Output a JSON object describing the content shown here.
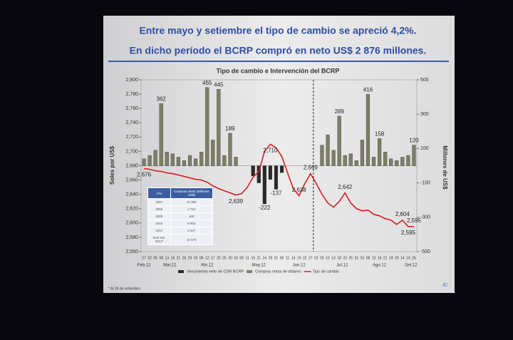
{
  "header": {
    "line1": "Entre  mayo y setiembre el tipo de cambio se apreció 4,2%.",
    "line2": "En dicho período el BCRP compró en neto US$ 2 876 millones."
  },
  "chart_data": {
    "type": "bar_line",
    "title": "Tipo de cambio e Intervención del BCRP",
    "ylabel": "Soles por US$",
    "y2label": "Millones de US$",
    "categories": [
      "27",
      "02",
      "05",
      "08",
      "13",
      "16",
      "21",
      "26",
      "29",
      "03",
      "09",
      "12",
      "17",
      "20",
      "25",
      "30",
      "03",
      "08",
      "11",
      "16",
      "21",
      "24",
      "29",
      "01",
      "06",
      "11",
      "14",
      "19",
      "22",
      "27",
      "02",
      "05",
      "10",
      "13",
      "18",
      "23",
      "26",
      "31",
      "03",
      "08",
      "13",
      "16",
      "21",
      "24",
      "29",
      "14",
      "19",
      "26"
    ],
    "months": [
      "Feb.12",
      "Mar.12",
      "Abr.12",
      "May.12",
      "Jun.12",
      "Jul.12",
      "Ago.12",
      "Set.12"
    ],
    "ylim": [
      2560,
      2800
    ],
    "yticks": [
      {
        "value": 2560,
        "label": "2,560"
      },
      {
        "value": 2580,
        "label": "2,580"
      },
      {
        "value": 2600,
        "label": "2,600"
      },
      {
        "value": 2620,
        "label": "2,620"
      },
      {
        "value": 2640,
        "label": "2,640"
      },
      {
        "value": 2660,
        "label": "2,660"
      },
      {
        "value": 2680,
        "label": "2,680"
      },
      {
        "value": 2700,
        "label": "2,700"
      },
      {
        "value": 2720,
        "label": "2,720"
      },
      {
        "value": 2740,
        "label": "2,740"
      },
      {
        "value": 2760,
        "label": "2,760"
      },
      {
        "value": 2780,
        "label": "2,780"
      },
      {
        "value": 2800,
        "label": "2,800"
      }
    ],
    "y2lim": [
      -500,
      500
    ],
    "y2ticks": [
      -500,
      -300,
      -100,
      100,
      300,
      500
    ],
    "series": [
      {
        "name": "Vencimiento neto de CDR BCRP",
        "color": "#2a2a2a",
        "axis": "y2",
        "values": [
          null,
          null,
          null,
          null,
          null,
          null,
          null,
          null,
          null,
          null,
          null,
          null,
          null,
          null,
          null,
          null,
          null,
          null,
          null,
          -60,
          -100,
          -222,
          -80,
          -137,
          -40,
          null,
          null,
          null,
          null,
          null,
          null,
          null,
          null,
          null,
          null,
          null,
          null,
          null,
          null,
          null,
          null,
          null,
          null,
          null,
          null,
          null,
          null,
          null
        ],
        "value_labels": [
          null,
          null,
          null,
          null,
          null,
          null,
          null,
          null,
          null,
          null,
          null,
          null,
          null,
          null,
          null,
          null,
          null,
          null,
          null,
          null,
          null,
          "-222",
          null,
          "-137",
          null,
          null,
          null,
          null,
          null,
          null,
          null,
          null,
          null,
          null,
          null,
          null,
          null,
          null,
          null,
          null,
          null,
          null,
          null,
          null,
          null,
          null,
          null,
          null
        ]
      },
      {
        "name": "Compras netas de dólares",
        "color": "#7e7e66",
        "axis": "y2",
        "values": [
          40,
          60,
          90,
          362,
          80,
          70,
          50,
          30,
          60,
          40,
          80,
          455,
          150,
          445,
          60,
          189,
          50,
          null,
          null,
          null,
          null,
          null,
          null,
          null,
          null,
          null,
          null,
          null,
          null,
          null,
          null,
          120,
          180,
          90,
          289,
          60,
          70,
          30,
          150,
          416,
          50,
          158,
          80,
          40,
          30,
          50,
          60,
          120
        ],
        "value_labels": [
          null,
          null,
          null,
          "362",
          null,
          null,
          null,
          null,
          null,
          null,
          null,
          "455",
          null,
          "445",
          null,
          "189",
          null,
          null,
          null,
          null,
          null,
          null,
          null,
          null,
          null,
          null,
          null,
          null,
          null,
          null,
          null,
          null,
          null,
          null,
          "289",
          null,
          null,
          null,
          null,
          "416",
          null,
          "158",
          null,
          null,
          null,
          null,
          null,
          "120"
        ]
      },
      {
        "name": "Tipo de cambio",
        "color": "#d42020",
        "values": [
          2676,
          2675,
          2673,
          2672,
          2670,
          2669,
          2667,
          2665,
          2663,
          2661,
          2660,
          2657,
          2652,
          2648,
          2645,
          2642,
          2639,
          2641,
          2650,
          2664,
          2672,
          2700,
          2710,
          2705,
          2693,
          2670,
          2648,
          2638,
          2655,
          2669,
          2655,
          2640,
          2628,
          2622,
          2630,
          2642,
          2628,
          2620,
          2617,
          2618,
          2612,
          2610,
          2606,
          2604,
          2598,
          2604,
          2595,
          2595
        ],
        "value_labels": [
          "2,676",
          null,
          null,
          null,
          null,
          null,
          null,
          null,
          null,
          null,
          null,
          null,
          null,
          null,
          null,
          null,
          "2,639",
          null,
          null,
          null,
          null,
          null,
          "2,710",
          null,
          null,
          null,
          null,
          "2,638",
          null,
          "2,669",
          null,
          null,
          null,
          null,
          null,
          "2,642",
          null,
          null,
          null,
          null,
          null,
          null,
          null,
          null,
          null,
          "2,604",
          "2,595",
          "2,595"
        ]
      }
    ]
  },
  "table": {
    "header": [
      "Año",
      "Compras netas (Millones US$)"
    ],
    "rows": [
      [
        "2007",
        "10 306"
      ],
      [
        "2008",
        "2 754"
      ],
      [
        "2009",
        "108"
      ],
      [
        "2010",
        "8 963"
      ],
      [
        "2011",
        "3 537"
      ],
      [
        "Ene-Set 2012*",
        "10 575"
      ]
    ]
  },
  "footnote": "* Al 26 de setiembre",
  "page": "42"
}
